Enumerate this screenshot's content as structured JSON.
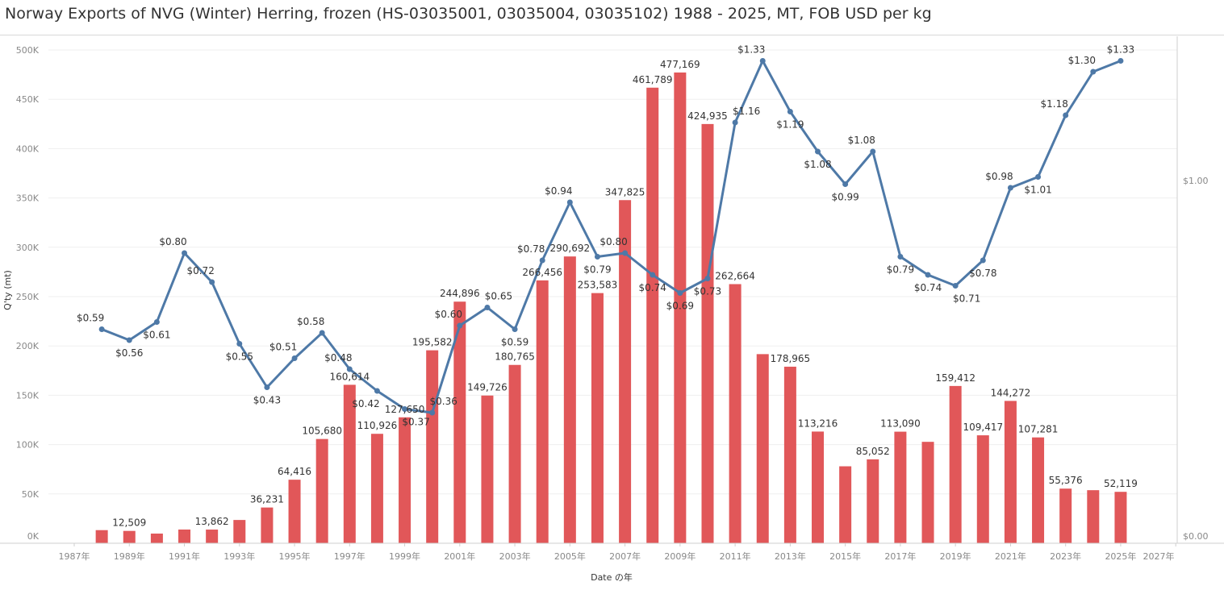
{
  "chart_data": {
    "type": "bar+line",
    "title": "Norway Exports of NVG (Winter) Herring, frozen (HS-03035001, 03035004, 03035102) 1988 - 2025, MT, FOB USD per kg",
    "xlabel": "Date の年",
    "ylabel": "Q'ty (mt)",
    "y2label": "",
    "x_ticks": [
      "1987年",
      "1989年",
      "1991年",
      "1993年",
      "1995年",
      "1997年",
      "1999年",
      "2001年",
      "2003年",
      "2005年",
      "2007年",
      "2009年",
      "2011年",
      "2013年",
      "2015年",
      "2017年",
      "2019年",
      "2021年",
      "2023年",
      "2025年",
      "2027年"
    ],
    "y_ticks": [
      "0K",
      "50K",
      "100K",
      "150K",
      "200K",
      "250K",
      "300K",
      "350K",
      "400K",
      "450K",
      "500K"
    ],
    "y2_ticks": [
      "$0.00",
      "$1.00"
    ],
    "xlim": [
      1987,
      2027
    ],
    "ylim": [
      0,
      515000
    ],
    "y2lim": [
      0,
      1.4
    ],
    "grid": true,
    "years": [
      1988,
      1989,
      1990,
      1991,
      1992,
      1993,
      1994,
      1995,
      1996,
      1997,
      1998,
      1999,
      2000,
      2001,
      2002,
      2003,
      2004,
      2005,
      2006,
      2007,
      2008,
      2009,
      2010,
      2011,
      2012,
      2013,
      2014,
      2015,
      2016,
      2017,
      2018,
      2019,
      2020,
      2021,
      2022,
      2023,
      2024,
      2025
    ],
    "series": [
      {
        "kind": "bar",
        "axis": "left",
        "color": "#e15759",
        "values": [
          13300,
          12509,
          9800,
          13900,
          13862,
          23600,
          36231,
          64416,
          105680,
          160614,
          110926,
          127650,
          195582,
          244896,
          149726,
          180765,
          266456,
          290692,
          253583,
          347825,
          461789,
          477169,
          424935,
          262664,
          191700,
          178965,
          113216,
          78000,
          85052,
          113090,
          102800,
          159412,
          109417,
          144272,
          107281,
          55376,
          53800,
          52119
        ],
        "labels": [
          "",
          "12,509",
          "",
          "",
          "13,862",
          "",
          "36,231",
          "64,416",
          "105,680",
          "160,614",
          "110,926",
          "127,650",
          "195,582",
          "244,896",
          "149,726",
          "180,765",
          "266,456",
          "290,692",
          "253,583",
          "347,825",
          "461,789",
          "477,169",
          "424,935",
          "262,664",
          "",
          "178,965",
          "113,216",
          "",
          "85,052",
          "113,090",
          "",
          "159,412",
          "109,417",
          "144,272",
          "107,281",
          "55,376",
          "",
          "52,119"
        ]
      },
      {
        "kind": "line",
        "axis": "right",
        "color": "#4e79a7",
        "values": [
          0.59,
          0.56,
          0.61,
          0.8,
          0.72,
          0.55,
          0.43,
          0.51,
          0.58,
          0.48,
          0.42,
          0.37,
          0.36,
          0.6,
          0.65,
          0.59,
          0.78,
          0.94,
          0.79,
          0.8,
          0.74,
          0.69,
          0.73,
          1.16,
          1.33,
          1.19,
          1.08,
          0.99,
          1.08,
          0.79,
          0.74,
          0.71,
          0.78,
          0.98,
          1.01,
          1.18,
          1.3,
          1.33
        ],
        "labels": [
          "$0.59",
          "$0.56",
          "$0.61",
          "$0.80",
          "$0.72",
          "$0.55",
          "$0.43",
          "$0.51",
          "$0.58",
          "$0.48",
          "$0.42",
          "$0.37",
          "$0.36",
          "$0.60",
          "$0.65",
          "$0.59",
          "$0.78",
          "$0.94",
          "$0.79",
          "$0.80",
          "$0.74",
          "$0.69",
          "$0.73",
          "$1.16",
          "$1.33",
          "$1.19",
          "$1.08",
          "$0.99",
          "$1.08",
          "$0.79",
          "$0.74",
          "$0.71",
          "$0.78",
          "$0.98",
          "$1.01",
          "$1.18",
          "$1.30",
          "$1.33"
        ]
      }
    ]
  }
}
